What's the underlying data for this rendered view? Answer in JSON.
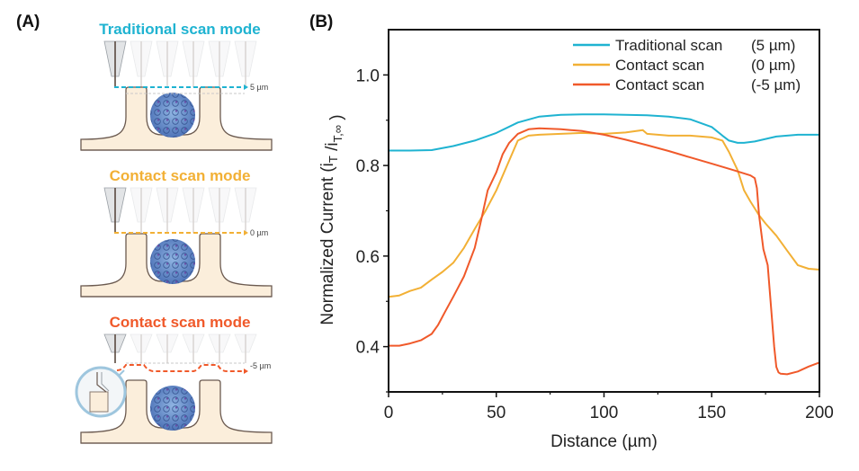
{
  "panel_a": {
    "label": "(A)",
    "modes": [
      {
        "title": "Traditional scan mode",
        "color": "#1fb3d1",
        "offset_label": "5 µm"
      },
      {
        "title": "Contact scan mode",
        "color": "#f2b035",
        "offset_label": "0 µm"
      },
      {
        "title": "Contact scan mode",
        "color": "#f0592a",
        "offset_label": "-5 µm"
      }
    ]
  },
  "panel_b": {
    "label": "(B)"
  },
  "chart_data": {
    "type": "line",
    "title": "",
    "xlabel": "Distance (µm)",
    "ylabel": "Normalized Current (iT /iT,∞ )",
    "xlim": [
      0,
      200
    ],
    "ylim": [
      0.3,
      1.1
    ],
    "xticks": [
      0,
      50,
      100,
      150,
      200
    ],
    "xtick_labels": [
      "0",
      "50",
      "100",
      "150",
      "200"
    ],
    "yticks": [
      0.4,
      0.6,
      0.8,
      1.0
    ],
    "ytick_labels": [
      "0.4",
      "0.6",
      "0.8",
      "1.0"
    ],
    "grid": false,
    "legend_position": "top-right",
    "series": [
      {
        "name": "Traditional scan",
        "offset": "(5  µm)",
        "color": "#1fb3d1",
        "x": [
          0,
          10,
          20,
          30,
          40,
          50,
          60,
          70,
          80,
          90,
          100,
          110,
          120,
          130,
          140,
          150,
          155,
          158,
          162,
          165,
          170,
          180,
          190,
          200
        ],
        "y": [
          0.833,
          0.833,
          0.834,
          0.843,
          0.855,
          0.872,
          0.895,
          0.908,
          0.912,
          0.913,
          0.913,
          0.912,
          0.911,
          0.908,
          0.902,
          0.885,
          0.866,
          0.855,
          0.85,
          0.85,
          0.853,
          0.864,
          0.868,
          0.868
        ]
      },
      {
        "name": "Contact scan",
        "offset": "(0  µm)",
        "color": "#f2b035",
        "x": [
          0,
          5,
          10,
          15,
          20,
          25,
          30,
          35,
          40,
          45,
          50,
          55,
          60,
          65,
          70,
          80,
          90,
          100,
          110,
          118,
          120,
          130,
          140,
          150,
          155,
          158,
          162,
          165,
          168,
          172,
          175,
          180,
          185,
          190,
          195,
          200
        ],
        "y": [
          0.51,
          0.513,
          0.523,
          0.53,
          0.548,
          0.565,
          0.585,
          0.618,
          0.66,
          0.7,
          0.745,
          0.8,
          0.855,
          0.866,
          0.868,
          0.87,
          0.872,
          0.87,
          0.873,
          0.878,
          0.87,
          0.866,
          0.866,
          0.862,
          0.855,
          0.83,
          0.79,
          0.745,
          0.72,
          0.69,
          0.672,
          0.645,
          0.612,
          0.58,
          0.572,
          0.57
        ]
      },
      {
        "name": "Contact scan",
        "offset": "(-5 µm)",
        "color": "#f0592a",
        "x": [
          0,
          5,
          10,
          15,
          20,
          23,
          26,
          30,
          35,
          40,
          43,
          46,
          50,
          53,
          56,
          60,
          65,
          70,
          80,
          90,
          100,
          110,
          120,
          130,
          140,
          150,
          160,
          168,
          170,
          171,
          172,
          174,
          176,
          177,
          178,
          179,
          180,
          181,
          182,
          185,
          190,
          195,
          200
        ],
        "y": [
          0.402,
          0.402,
          0.407,
          0.414,
          0.428,
          0.448,
          0.475,
          0.51,
          0.555,
          0.618,
          0.68,
          0.745,
          0.785,
          0.825,
          0.85,
          0.87,
          0.88,
          0.882,
          0.88,
          0.876,
          0.868,
          0.857,
          0.845,
          0.832,
          0.818,
          0.804,
          0.79,
          0.778,
          0.772,
          0.75,
          0.69,
          0.615,
          0.58,
          0.52,
          0.46,
          0.4,
          0.355,
          0.343,
          0.34,
          0.339,
          0.345,
          0.356,
          0.365
        ]
      }
    ]
  }
}
